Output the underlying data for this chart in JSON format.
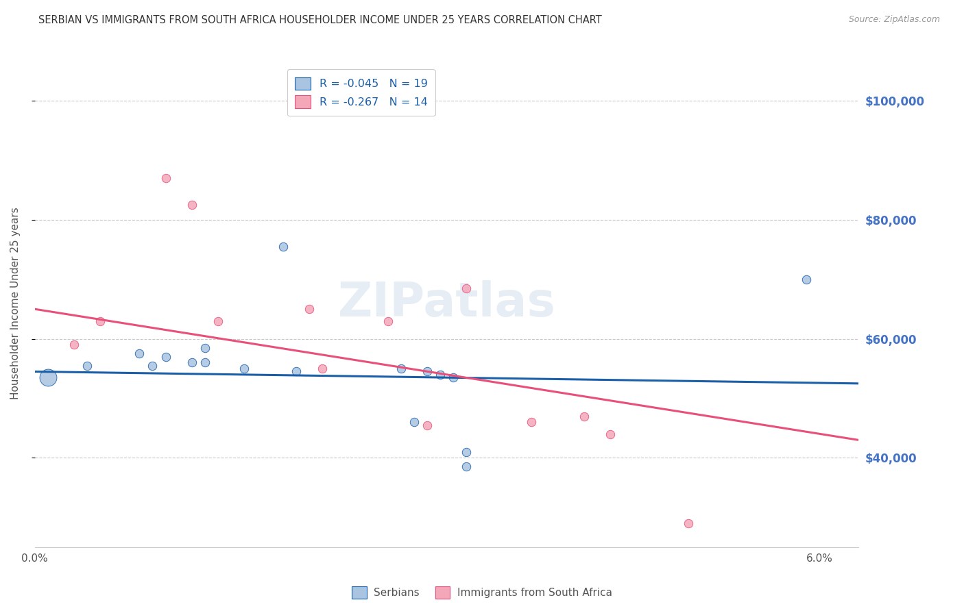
{
  "title": "SERBIAN VS IMMIGRANTS FROM SOUTH AFRICA HOUSEHOLDER INCOME UNDER 25 YEARS CORRELATION CHART",
  "source": "Source: ZipAtlas.com",
  "ylabel": "Householder Income Under 25 years",
  "ytick_values": [
    40000,
    60000,
    80000,
    100000
  ],
  "xlim": [
    0.0,
    0.063
  ],
  "ylim": [
    25000,
    107000
  ],
  "R_blue": -0.045,
  "N_blue": 19,
  "R_pink": -0.267,
  "N_pink": 14,
  "serbian_x": [
    0.001,
    0.004,
    0.008,
    0.009,
    0.01,
    0.012,
    0.013,
    0.013,
    0.016,
    0.019,
    0.02,
    0.028,
    0.029,
    0.03,
    0.031,
    0.032,
    0.033,
    0.033,
    0.059
  ],
  "serbian_y": [
    53500,
    55500,
    57500,
    55500,
    57000,
    56000,
    58500,
    56000,
    55000,
    75500,
    54500,
    55000,
    46000,
    54500,
    54000,
    53500,
    41000,
    38500,
    70000
  ],
  "sa_x": [
    0.003,
    0.005,
    0.01,
    0.012,
    0.014,
    0.021,
    0.022,
    0.027,
    0.03,
    0.033,
    0.038,
    0.042,
    0.044,
    0.05
  ],
  "sa_y": [
    59000,
    63000,
    87000,
    82500,
    63000,
    65000,
    55000,
    63000,
    45500,
    68500,
    46000,
    47000,
    44000,
    29000
  ],
  "blue_line_x0": 0.0,
  "blue_line_y0": 54500,
  "blue_line_x1": 0.063,
  "blue_line_y1": 52500,
  "pink_line_x0": 0.0,
  "pink_line_y0": 65000,
  "pink_line_x1": 0.063,
  "pink_line_y1": 43000,
  "color_blue": "#a8c4e0",
  "color_pink": "#f4a7b9",
  "line_blue": "#1a5fa8",
  "line_pink": "#e8507a",
  "background": "#ffffff",
  "grid_color": "#c8c8c8",
  "title_color": "#333333",
  "right_label_color": "#4472c4",
  "axis_label_color": "#555555",
  "watermark": "ZIPatlas",
  "legend_label_color": "#1a5fa8"
}
